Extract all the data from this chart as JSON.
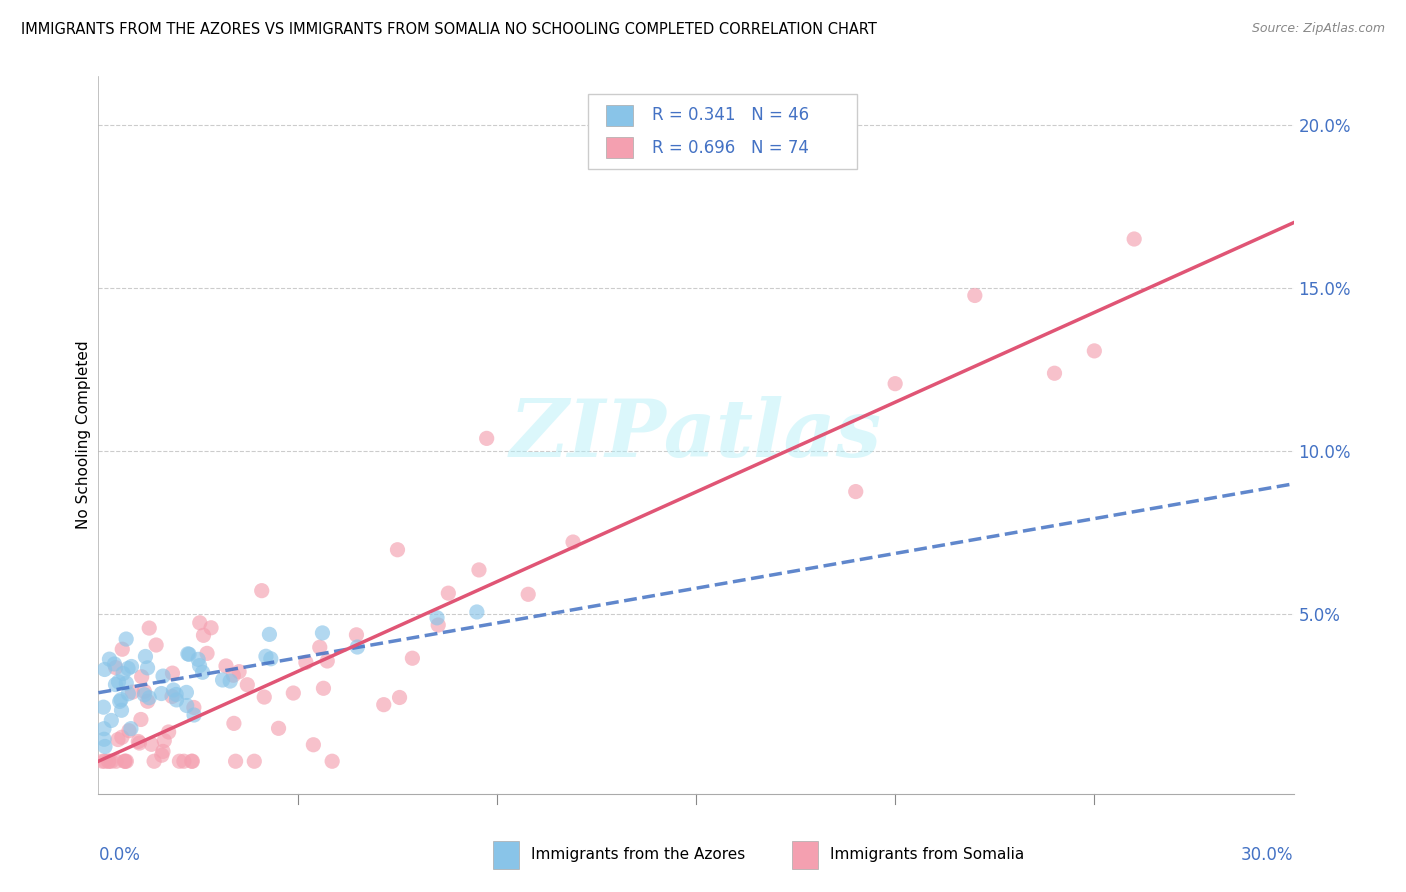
{
  "title": "IMMIGRANTS FROM THE AZORES VS IMMIGRANTS FROM SOMALIA NO SCHOOLING COMPLETED CORRELATION CHART",
  "source": "Source: ZipAtlas.com",
  "ylabel": "No Schooling Completed",
  "ytick_values": [
    0.0,
    0.05,
    0.1,
    0.15,
    0.2
  ],
  "ytick_labels": [
    "",
    "5.0%",
    "10.0%",
    "15.0%",
    "20.0%"
  ],
  "xlim": [
    0.0,
    0.3
  ],
  "ylim": [
    -0.005,
    0.215
  ],
  "legend_r1": "R = 0.341",
  "legend_n1": "N = 46",
  "legend_r2": "R = 0.696",
  "legend_n2": "N = 74",
  "color_azores": "#89C4E8",
  "color_somalia": "#F4A0B0",
  "color_blue_text": "#4472C4",
  "color_pink_line": "#E05575",
  "watermark": "ZIPatlas",
  "label_azores": "Immigrants from the Azores",
  "label_somalia": "Immigrants from Somalia",
  "regression_az_x0": 0.0,
  "regression_az_y0": 0.026,
  "regression_az_x1": 0.3,
  "regression_az_y1": 0.09,
  "regression_som_x0": 0.0,
  "regression_som_y0": 0.005,
  "regression_som_x1": 0.3,
  "regression_som_y1": 0.17
}
